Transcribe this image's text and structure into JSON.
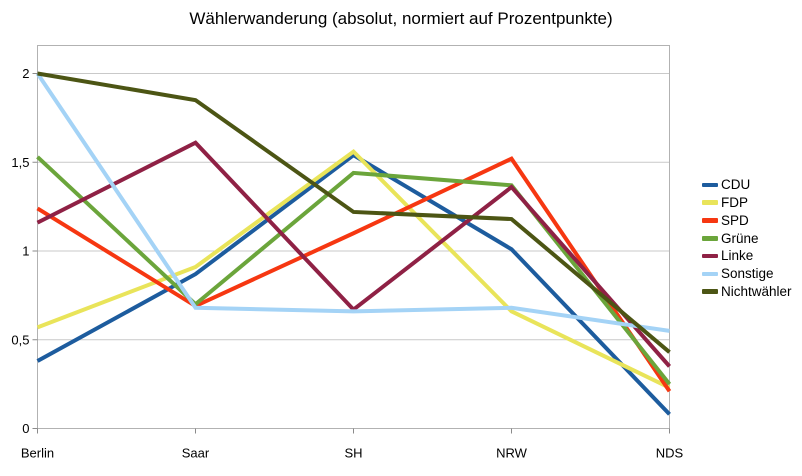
{
  "chart_data": {
    "type": "line",
    "title": "Wählerwanderung (absolut, normiert auf Prozentpunkte)",
    "categories": [
      "Berlin",
      "Saar",
      "SH",
      "NRW",
      "NDS"
    ],
    "series": [
      {
        "name": "CDU",
        "color": "#1D5C9E",
        "values": [
          0.38,
          0.87,
          1.54,
          1.01,
          0.08
        ]
      },
      {
        "name": "FDP",
        "color": "#E9E45A",
        "values": [
          0.57,
          0.91,
          1.56,
          0.66,
          0.23
        ]
      },
      {
        "name": "SPD",
        "color": "#F63711",
        "values": [
          1.24,
          0.69,
          1.1,
          1.52,
          0.21
        ]
      },
      {
        "name": "Grüne",
        "color": "#6BA53B",
        "values": [
          1.53,
          0.7,
          1.44,
          1.37,
          0.25
        ]
      },
      {
        "name": "Linke",
        "color": "#8F2145",
        "values": [
          1.16,
          1.61,
          0.67,
          1.36,
          0.35
        ]
      },
      {
        "name": "Sonstige",
        "color": "#A4D3F6",
        "values": [
          2.0,
          0.68,
          0.66,
          0.68,
          0.55
        ]
      },
      {
        "name": "Nichtwähler",
        "color": "#4C5514",
        "values": [
          2.0,
          1.85,
          1.22,
          1.18,
          0.43
        ]
      }
    ],
    "yticks": [
      {
        "v": 0,
        "label": "0"
      },
      {
        "v": 0.5,
        "label": "0,5"
      },
      {
        "v": 1,
        "label": "1"
      },
      {
        "v": 1.5,
        "label": "1,5"
      },
      {
        "v": 2,
        "label": "2"
      }
    ],
    "ylim": [
      0,
      2.16
    ],
    "xlabel": "",
    "ylabel": "",
    "grid": "horizontal",
    "legend_position": "right",
    "colors": {
      "plot_border": "#B2B2B2",
      "gridline": "#C9C9C9",
      "tick": "#8A8A8A",
      "background": "#FFFFFF"
    }
  }
}
